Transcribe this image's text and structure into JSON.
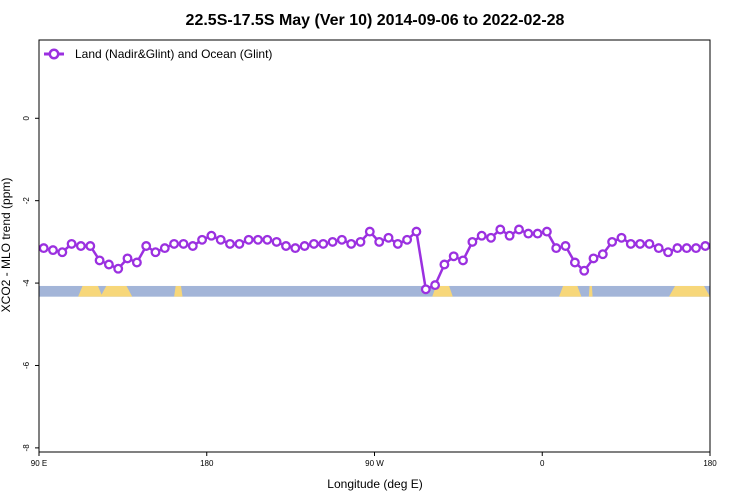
{
  "chart_data": {
    "type": "line",
    "title": "22.5S-17.5S May (Ver 10)   2014-09-06 to 2022-02-28",
    "xlabel": "Longitude (deg E)",
    "ylabel": "XCO2 - MLO trend (ppm)",
    "xlim": [
      90,
      450
    ],
    "ylim": [
      -8.1,
      1.9
    ],
    "x_ticks": [
      {
        "value": 90,
        "label": "90 E"
      },
      {
        "value": 180,
        "label": "180"
      },
      {
        "value": 270,
        "label": "90 W"
      },
      {
        "value": 360,
        "label": "0"
      },
      {
        "value": 450,
        "label": "180"
      }
    ],
    "y_ticks": [
      {
        "value": 0,
        "label": "0"
      },
      {
        "value": -2,
        "label": "-2"
      },
      {
        "value": -4,
        "label": "-4"
      },
      {
        "value": -6,
        "label": "-6"
      },
      {
        "value": -8,
        "label": "-8"
      }
    ],
    "grid": false,
    "legend_position": "top-left",
    "colors": {
      "series": "#9b30e0",
      "ocean": "#a3b5d8",
      "land": "#f7d77a"
    },
    "series": [
      {
        "name": "Land (Nadir&Glint) and Ocean (Glint)",
        "x": [
          92.5,
          97.5,
          102.5,
          107.5,
          112.5,
          117.5,
          122.5,
          127.5,
          132.5,
          137.5,
          142.5,
          147.5,
          152.5,
          157.5,
          162.5,
          167.5,
          172.5,
          177.5,
          182.5,
          187.5,
          192.5,
          197.5,
          202.5,
          207.5,
          212.5,
          217.5,
          222.5,
          227.5,
          232.5,
          237.5,
          242.5,
          247.5,
          252.5,
          257.5,
          262.5,
          267.5,
          272.5,
          277.5,
          282.5,
          287.5,
          292.5,
          297.5,
          302.5,
          307.5,
          312.5,
          317.5,
          322.5,
          327.5,
          332.5,
          337.5,
          342.5,
          347.5,
          352.5,
          357.5,
          362.5,
          367.5,
          372.5,
          377.5,
          382.5,
          387.5,
          392.5,
          397.5,
          402.5,
          407.5,
          412.5,
          417.5,
          422.5,
          427.5,
          432.5,
          437.5,
          442.5,
          447.5
        ],
        "values": [
          -3.15,
          -3.2,
          -3.25,
          -3.05,
          -3.1,
          -3.1,
          -3.45,
          -3.55,
          -3.65,
          -3.4,
          -3.5,
          -3.1,
          -3.25,
          -3.15,
          -3.05,
          -3.05,
          -3.1,
          -2.95,
          -2.85,
          -2.95,
          -3.05,
          -3.05,
          -2.95,
          -2.95,
          -2.95,
          -3.0,
          -3.1,
          -3.15,
          -3.1,
          -3.05,
          -3.05,
          -3.0,
          -2.95,
          -3.05,
          -3.0,
          -2.75,
          -3.0,
          -2.9,
          -3.05,
          -2.95,
          -2.75,
          -4.15,
          -4.05,
          -3.55,
          -3.35,
          -3.45,
          -3.0,
          -2.85,
          -2.9,
          -2.7,
          -2.85,
          -2.7,
          -2.8,
          -2.8,
          -2.75,
          -3.15,
          -3.1,
          -3.5,
          -3.7,
          -3.4,
          -3.3,
          -3.0,
          -2.9,
          -3.05,
          -3.05,
          -3.05,
          -3.15,
          -3.25,
          -3.15,
          -3.15,
          -3.15,
          -3.1
        ]
      }
    ],
    "land_ocean_strip": {
      "y_range": [
        -4.33,
        -4.07
      ],
      "land_lon_ranges": [
        [
          111,
          124
        ],
        [
          162.5,
          167
        ],
        [
          301,
          312
        ],
        [
          369,
          381
        ],
        [
          385,
          387
        ],
        [
          428,
          455
        ],
        [
          483,
          500
        ]
      ]
    }
  }
}
